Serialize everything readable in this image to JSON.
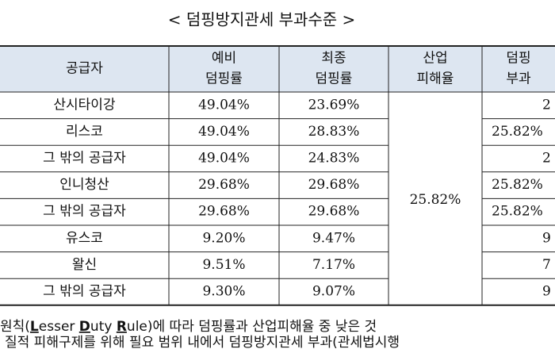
{
  "title": "< 덤핑방지관세 부과수준 >",
  "table": {
    "header": [
      [
        "공급자"
      ],
      [
        "예비",
        "덤핑률"
      ],
      [
        "최종",
        "덤핑률"
      ],
      [
        "산업",
        "피해율"
      ],
      [
        "덤핑",
        "부과"
      ]
    ],
    "rows": [
      [
        "산시타이강",
        "49.04%",
        "23.69%",
        "2"
      ],
      [
        "리스코",
        "49.04%",
        "28.83%",
        "25.82%"
      ],
      [
        "그 밖의 공급자",
        "49.04%",
        "24.83%",
        "2"
      ],
      [
        "인니청산",
        "29.68%",
        "29.68%",
        "25.82%"
      ],
      [
        "그 밖의 공급자",
        "29.68%",
        "29.68%",
        "25.82%"
      ],
      [
        "유스코",
        "9.20%",
        "9.47%",
        "9"
      ],
      [
        "왈신",
        "9.51%",
        "7.17%",
        "7"
      ],
      [
        "그 밖의 공급자",
        "9.30%",
        "9.07%",
        "9"
      ]
    ],
    "injury_rate": "25.82%"
  },
  "footnote": {
    "line1": [
      "원칙(",
      "L",
      "esser ",
      "D",
      "uty ",
      "R",
      "ule)에 따라 덤핑률과 산업피해율 중 낮은 것"
    ],
    "line2": "질적 피해구제를 위해 필요 범위 내에서 덤핑방지관세 부과(관세법시행"
  }
}
